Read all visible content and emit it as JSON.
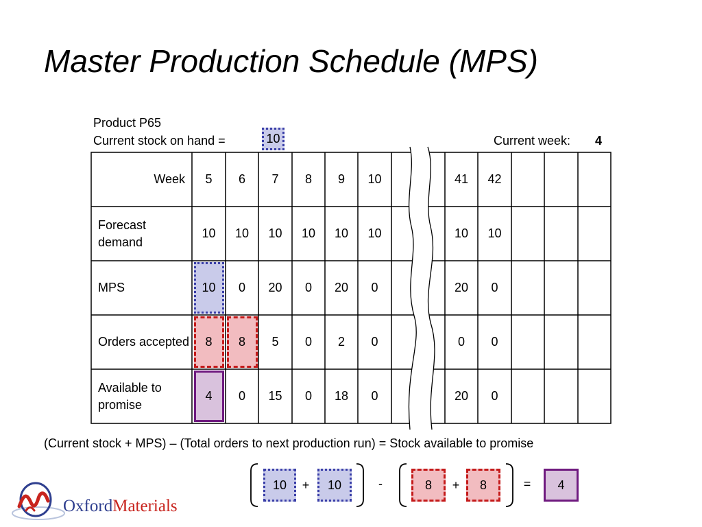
{
  "title": "Master Production Schedule (MPS)",
  "product_label": "Product P65",
  "stock": {
    "label": "Current stock on hand =",
    "value": "10"
  },
  "current_week": {
    "label": "Current week:",
    "value": "4"
  },
  "table": {
    "row_labels": [
      "Week",
      "Forecast demand",
      "MPS",
      "Orders accepted",
      "Available to promise"
    ],
    "weeks": [
      "5",
      "6",
      "7",
      "8",
      "9",
      "10",
      "",
      "41",
      "42",
      "",
      "",
      ""
    ],
    "forecast": [
      "10",
      "10",
      "10",
      "10",
      "10",
      "10",
      "",
      "10",
      "10",
      "",
      "",
      ""
    ],
    "mps": [
      "10",
      "0",
      "20",
      "0",
      "20",
      "0",
      "",
      "20",
      "0",
      "",
      "",
      ""
    ],
    "orders": [
      "8",
      "8",
      "5",
      "0",
      "2",
      "0",
      "",
      "0",
      "0",
      "",
      "",
      ""
    ],
    "atp": [
      "4",
      "0",
      "15",
      "0",
      "18",
      "0",
      "",
      "20",
      "0",
      "",
      "",
      ""
    ]
  },
  "formula": "(Current stock + MPS) – (Total orders to next production run) = Stock available to promise",
  "equation": {
    "a": "10",
    "plus1": "+",
    "b": "10",
    "minus": "-",
    "c": "8",
    "plus2": "+",
    "d": "8",
    "equals": "=",
    "result": "4"
  },
  "logo": {
    "part1": "Oxford",
    "part2": "Materials"
  },
  "colors": {
    "blue": "#3a3fa8",
    "red": "#c41a1a",
    "purple": "#6f1a7f"
  }
}
